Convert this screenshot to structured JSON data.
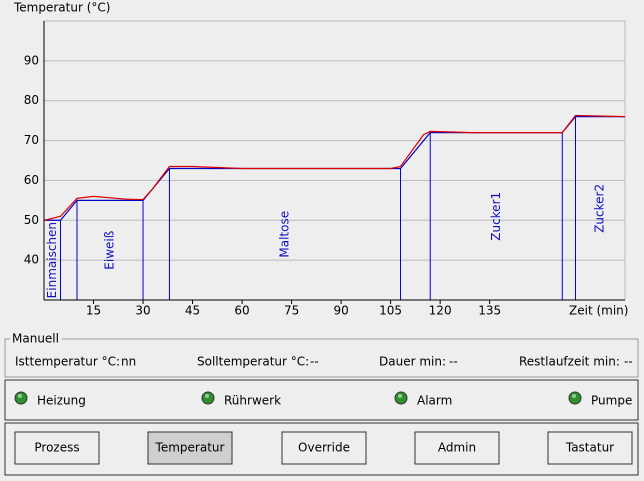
{
  "chart_data": {
    "type": "line",
    "ylabel": "Temperatur (°C)",
    "xlabel": "Zeit (min)",
    "xlim": [
      0,
      176
    ],
    "ylim": [
      30,
      100
    ],
    "xticks": [
      15,
      30,
      45,
      60,
      75,
      90,
      105,
      120,
      135
    ],
    "yticks": [
      40,
      50,
      60,
      70,
      80,
      90
    ],
    "grid": true,
    "series": [
      {
        "color": "#0000cc",
        "x": [
          0,
          5,
          10,
          30,
          38,
          108,
          117,
          157,
          161,
          176
        ],
        "values": [
          50,
          50,
          55,
          55,
          63,
          63,
          72,
          72,
          76,
          76
        ]
      },
      {
        "color": "#dd0000",
        "x": [
          0,
          5,
          10,
          15,
          25,
          30,
          33,
          38,
          45,
          60,
          90,
          105,
          108,
          115,
          117,
          130,
          150,
          157,
          161,
          176
        ],
        "values": [
          50,
          51,
          55.5,
          56,
          55.3,
          55.2,
          58,
          63.5,
          63.5,
          63,
          63,
          63,
          63.5,
          71.5,
          72.3,
          72,
          72,
          72,
          76.3,
          76
        ]
      }
    ],
    "phases": [
      "Einmaischen",
      "Eiweiß",
      "Maltose",
      "Zucker1",
      "Zucker2"
    ]
  },
  "status": {
    "title": "Manuell",
    "items": [
      {
        "label": "Isttemperatur °C:",
        "value": "nn"
      },
      {
        "label": "Solltemperatur °C:",
        "value": "--"
      },
      {
        "label": "Dauer min:",
        "value": "--"
      },
      {
        "label": "Restlaufzeit min:",
        "value": "--"
      }
    ]
  },
  "indicators": [
    "Heizung",
    "Rührwerk",
    "Alarm",
    "Pumpe"
  ],
  "indicator_color": "#2f8f2f",
  "buttons": [
    "Prozess",
    "Temperatur",
    "Override",
    "Admin",
    "Tastatur"
  ],
  "pressed_button": 1
}
